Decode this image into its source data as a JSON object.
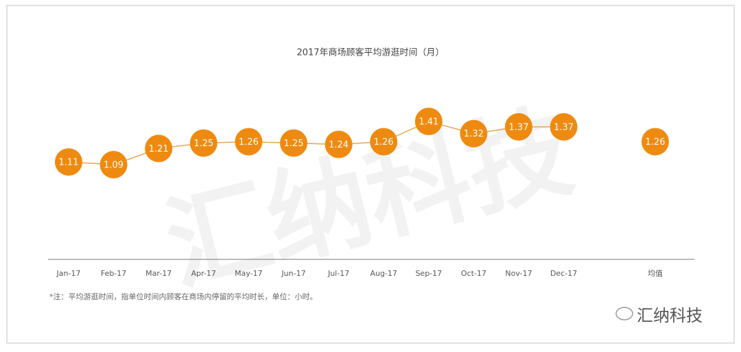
{
  "chart_data": {
    "type": "line",
    "title": "2017年商场顾客平均游逛时间（月）",
    "categories": [
      "Jan-17",
      "Feb-17",
      "Mar-17",
      "Apr-17",
      "May-17",
      "Jun-17",
      "Jul-17",
      "Aug-17",
      "Sep-17",
      "Oct-17",
      "Nov-17",
      "Dec-17",
      "均值"
    ],
    "values": [
      1.11,
      1.09,
      1.21,
      1.25,
      1.26,
      1.25,
      1.24,
      1.26,
      1.41,
      1.32,
      1.37,
      1.37,
      null
    ],
    "average": 1.26,
    "color": "#ef8a11",
    "footnote": "*注：平均游逛时间，指单位时间内顾客在商场内停留的平均时长，单位：小时。",
    "watermark": "汇纳科技",
    "logo": "汇纳科技"
  }
}
